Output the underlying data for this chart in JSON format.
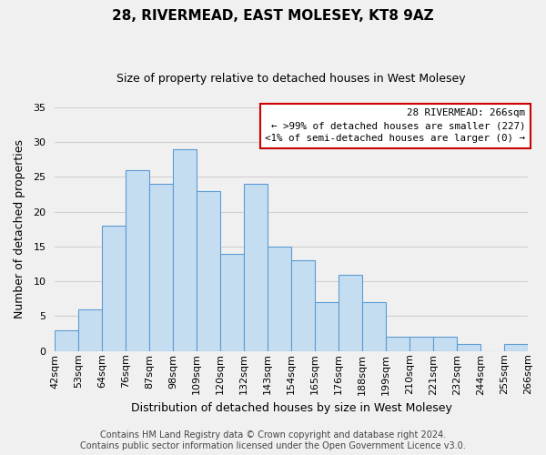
{
  "title": "28, RIVERMEAD, EAST MOLESEY, KT8 9AZ",
  "subtitle": "Size of property relative to detached houses in West Molesey",
  "xlabel": "Distribution of detached houses by size in West Molesey",
  "ylabel": "Number of detached properties",
  "bar_labels": [
    "42sqm",
    "53sqm",
    "64sqm",
    "76sqm",
    "87sqm",
    "98sqm",
    "109sqm",
    "120sqm",
    "132sqm",
    "143sqm",
    "154sqm",
    "165sqm",
    "176sqm",
    "188sqm",
    "199sqm",
    "210sqm",
    "221sqm",
    "232sqm",
    "244sqm",
    "255sqm",
    "266sqm"
  ],
  "bar_values": [
    3,
    6,
    18,
    26,
    24,
    29,
    23,
    14,
    24,
    15,
    13,
    7,
    11,
    7,
    2,
    2,
    2,
    1,
    0,
    1
  ],
  "bar_color": "#c5ddf0",
  "bar_edge_color": "#5b9bd5",
  "ylim": [
    0,
    35
  ],
  "yticks": [
    0,
    5,
    10,
    15,
    20,
    25,
    30,
    35
  ],
  "legend_title": "28 RIVERMEAD: 266sqm",
  "legend_line1": "← >99% of detached houses are smaller (227)",
  "legend_line2": "<1% of semi-detached houses are larger (0) →",
  "legend_box_color": "#ffffff",
  "legend_box_edge_color": "#cc0000",
  "footer_line1": "Contains HM Land Registry data © Crown copyright and database right 2024.",
  "footer_line2": "Contains public sector information licensed under the Open Government Licence v3.0.",
  "background_color": "#f0f0f0",
  "grid_color": "#d0d0d0",
  "title_fontsize": 11,
  "subtitle_fontsize": 9,
  "xlabel_fontsize": 9,
  "ylabel_fontsize": 9,
  "tick_fontsize": 8,
  "footer_fontsize": 7
}
